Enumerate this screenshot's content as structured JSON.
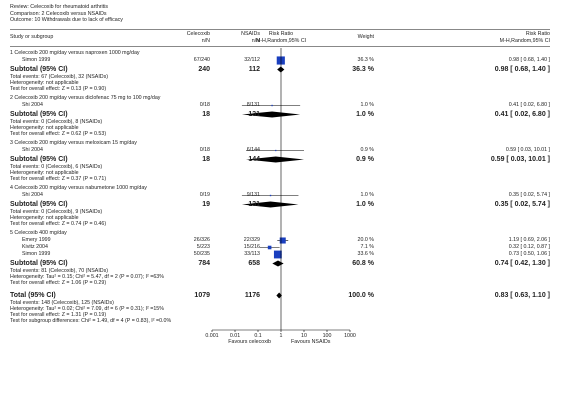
{
  "header": {
    "review": "Review:  Celecoxib for rheumatoid arthritis",
    "comparison": "Comparison:  2 Celecoxib versus NSAIDs",
    "outcome": "Outcome:  10 Withdrawals due to lack of efficacy"
  },
  "columns": {
    "study": "Study or subgroup",
    "exp_name": "Celecoxib",
    "exp_n": "n/N",
    "ctl_name": "NSAIDs",
    "ctl_n": "n/N",
    "rr1": "Risk Ratio",
    "rr1_method": "M-H,Random,95% CI",
    "weight": "Weight",
    "rr2": "Risk Ratio",
    "rr2_method": "M-H,Random,95% CI"
  },
  "chart_data": {
    "type": "forest",
    "xscale": "log",
    "xlim": [
      0.001,
      1000
    ],
    "xticks": [
      "0.001",
      "0.01",
      "0.1",
      "1",
      "10",
      "100",
      "1000"
    ],
    "left_label": "Favours celecoxib",
    "right_label": "Favours NSAIDs",
    "groups": [
      {
        "title": "1 Celecoxib 200 mg/day versus naproxen 1000 mg/day",
        "studies": [
          {
            "name": "Simon 1999",
            "exp": "67/240",
            "ctl": "32/112",
            "weight": "36.3 %",
            "ci_text": "0.98 [ 0.68, 1.40 ]",
            "rr": 0.98,
            "lo": 0.68,
            "hi": 1.4,
            "w": 36.3
          }
        ],
        "subtotal": {
          "label": "Subtotal (95% CI)",
          "exp_total": "240",
          "ctl_total": "112",
          "weight": "36.3 %",
          "ci_text": "0.98 [ 0.68, 1.40 ]",
          "rr": 0.98,
          "lo": 0.68,
          "hi": 1.4
        },
        "notes": [
          "Total events: 67 (Celecoxib), 32 (NSAIDs)",
          "Heterogeneity: not applicable",
          "Test for overall effect: Z = 0.13 (P = 0.90)"
        ]
      },
      {
        "title": "2 Celecoxib 200 mg/day versus diclofenac 75 mg to 100 mg/day",
        "studies": [
          {
            "name": "Shi 2004",
            "exp": "0/18",
            "ctl": "8/131",
            "weight": "1.0 %",
            "ci_text": "0.41 [ 0.02, 6.80 ]",
            "rr": 0.41,
            "lo": 0.02,
            "hi": 6.8,
            "w": 1.0
          }
        ],
        "subtotal": {
          "label": "Subtotal (95% CI)",
          "exp_total": "18",
          "ctl_total": "131",
          "weight": "1.0 %",
          "ci_text": "0.41 [ 0.02, 6.80 ]",
          "rr": 0.41,
          "lo": 0.02,
          "hi": 6.8
        },
        "notes": [
          "Total events: 0 (Celecoxib), 8 (NSAIDs)",
          "Heterogeneity: not applicable",
          "Test for overall effect: Z = 0.62 (P = 0.53)"
        ]
      },
      {
        "title": "3 Celecoxib 200 mg/day versus meloxicam 15 mg/day",
        "studies": [
          {
            "name": "Shi 2004",
            "exp": "0/18",
            "ctl": "6/144",
            "weight": "0.9 %",
            "ci_text": "0.59 [ 0.03, 10.01 ]",
            "rr": 0.59,
            "lo": 0.03,
            "hi": 10.01,
            "w": 0.9
          }
        ],
        "subtotal": {
          "label": "Subtotal (95% CI)",
          "exp_total": "18",
          "ctl_total": "144",
          "weight": "0.9 %",
          "ci_text": "0.59 [ 0.03, 10.01 ]",
          "rr": 0.59,
          "lo": 0.03,
          "hi": 10.01
        },
        "notes": [
          "Total events: 0 (Celecoxib), 6 (NSAIDs)",
          "Heterogeneity: not applicable",
          "Test for overall effect: Z = 0.37 (P = 0.71)"
        ]
      },
      {
        "title": "4 Celecoxib 200 mg/day versus nabumetone 1000 mg/day",
        "studies": [
          {
            "name": "Shi 2004",
            "exp": "0/19",
            "ctl": "9/131",
            "weight": "1.0 %",
            "ci_text": "0.35 [ 0.02, 5.74 ]",
            "rr": 0.35,
            "lo": 0.02,
            "hi": 5.74,
            "w": 1.0
          }
        ],
        "subtotal": {
          "label": "Subtotal (95% CI)",
          "exp_total": "19",
          "ctl_total": "131",
          "weight": "1.0 %",
          "ci_text": "0.35 [ 0.02, 5.74 ]",
          "rr": 0.35,
          "lo": 0.02,
          "hi": 5.74
        },
        "notes": [
          "Total events: 0 (Celecoxib), 9 (NSAIDs)",
          "Heterogeneity: not applicable",
          "Test for overall effect: Z = 0.74 (P = 0.46)"
        ]
      },
      {
        "title": "5 Celecoxib 400 mg/day",
        "studies": [
          {
            "name": "Emery 1999",
            "exp": "26/326",
            "ctl": "22/329",
            "weight": "20.0 %",
            "ci_text": "1.19 [ 0.69, 2.06 ]",
            "rr": 1.19,
            "lo": 0.69,
            "hi": 2.06,
            "w": 20.0
          },
          {
            "name": "Kivitz 2004",
            "exp": "5/223",
            "ctl": "15/216",
            "weight": "7.1 %",
            "ci_text": "0.32 [ 0.12, 0.87 ]",
            "rr": 0.32,
            "lo": 0.12,
            "hi": 0.87,
            "w": 7.1
          },
          {
            "name": "Simon 1999",
            "exp": "50/235",
            "ctl": "33/113",
            "weight": "33.6 %",
            "ci_text": "0.73 [ 0.50, 1.06 ]",
            "rr": 0.73,
            "lo": 0.5,
            "hi": 1.06,
            "w": 33.6
          }
        ],
        "subtotal": {
          "label": "Subtotal (95% CI)",
          "exp_total": "784",
          "ctl_total": "658",
          "weight": "60.8 %",
          "ci_text": "0.74 [ 0.42, 1.30 ]",
          "rr": 0.74,
          "lo": 0.42,
          "hi": 1.3
        },
        "notes": [
          "Total events: 81 (Celecoxib), 70 (NSAIDs)",
          "Heterogeneity: Tau² = 0.15; Chi² = 5.47, df = 2 (P = 0.07); I² =63%",
          "Test for overall effect: Z = 1.06 (P = 0.29)"
        ]
      }
    ],
    "total": {
      "label": "Total (95% CI)",
      "exp_total": "1079",
      "ctl_total": "1176",
      "weight": "100.0 %",
      "ci_text": "0.83 [ 0.63, 1.10 ]",
      "rr": 0.83,
      "lo": 0.63,
      "hi": 1.1,
      "notes": [
        "Total events: 148 (Celecoxib), 125 (NSAIDs)",
        "Heterogeneity: Tau² = 0.02; Chi² = 7.09, df = 6 (P = 0.31); I² =15%",
        "Test for overall effect: Z = 1.31 (P = 0.19)",
        "Test for subgroup differences: Chi² = 1.49, df = 4 (P = 0.83), I² =0.0%"
      ]
    }
  },
  "colors": {
    "marker": "#1a3fbf",
    "diamond": "#000000",
    "text": "#222222"
  }
}
